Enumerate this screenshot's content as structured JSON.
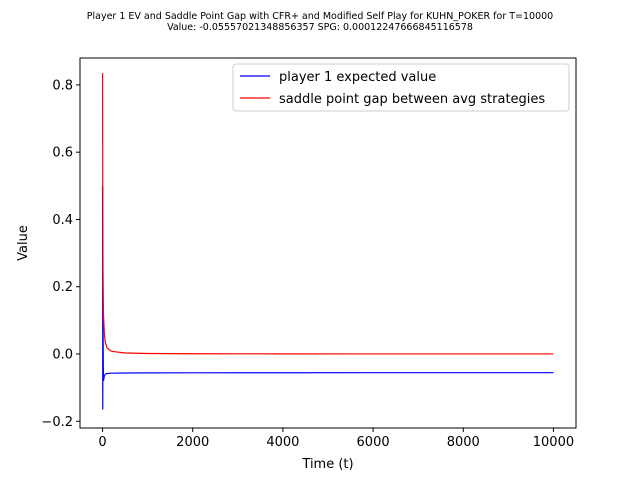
{
  "chart_data": {
    "type": "line",
    "title_lines": [
      "Player 1 EV and Saddle Point Gap with CFR+ and Modified Self Play for KUHN_POKER for T=10000",
      "Value: -0.05557021348856357 SPG: 0.00012247666845116578"
    ],
    "xlabel": "Time (t)",
    "ylabel": "Value",
    "xlim": [
      -500,
      10500
    ],
    "ylim": [
      -0.22,
      0.88
    ],
    "x_ticks": [
      0,
      2000,
      4000,
      6000,
      8000,
      10000
    ],
    "y_ticks": [
      -0.2,
      0.0,
      0.2,
      0.4,
      0.6,
      0.8
    ],
    "x_tick_labels": [
      "0",
      "2000",
      "4000",
      "6000",
      "8000",
      "10000"
    ],
    "y_tick_labels": [
      "−0.2",
      "0.0",
      "0.2",
      "0.4",
      "0.6",
      "0.8"
    ],
    "grid": false,
    "legend_position": "top-right",
    "series": [
      {
        "name": "player 1 expected value",
        "color": "#0000ff",
        "points": [
          [
            0,
            0.5
          ],
          [
            5,
            -0.165
          ],
          [
            10,
            0.1
          ],
          [
            20,
            -0.08
          ],
          [
            40,
            -0.065
          ],
          [
            60,
            -0.06
          ],
          [
            100,
            -0.058
          ],
          [
            200,
            -0.057
          ],
          [
            500,
            -0.0565
          ],
          [
            1000,
            -0.0562
          ],
          [
            2000,
            -0.0559
          ],
          [
            4000,
            -0.0557
          ],
          [
            6000,
            -0.0556
          ],
          [
            8000,
            -0.0556
          ],
          [
            10000,
            -0.05557
          ]
        ]
      },
      {
        "name": "saddle point gap between avg strategies",
        "color": "#ff0000",
        "points": [
          [
            0,
            0.835
          ],
          [
            5,
            0.5
          ],
          [
            10,
            0.25
          ],
          [
            20,
            0.12
          ],
          [
            40,
            0.06
          ],
          [
            60,
            0.035
          ],
          [
            100,
            0.018
          ],
          [
            200,
            0.008
          ],
          [
            500,
            0.003
          ],
          [
            1000,
            0.0015
          ],
          [
            2000,
            0.0008
          ],
          [
            4000,
            0.0004
          ],
          [
            6000,
            0.0002
          ],
          [
            8000,
            0.00015
          ],
          [
            10000,
            0.00012
          ]
        ]
      }
    ]
  }
}
